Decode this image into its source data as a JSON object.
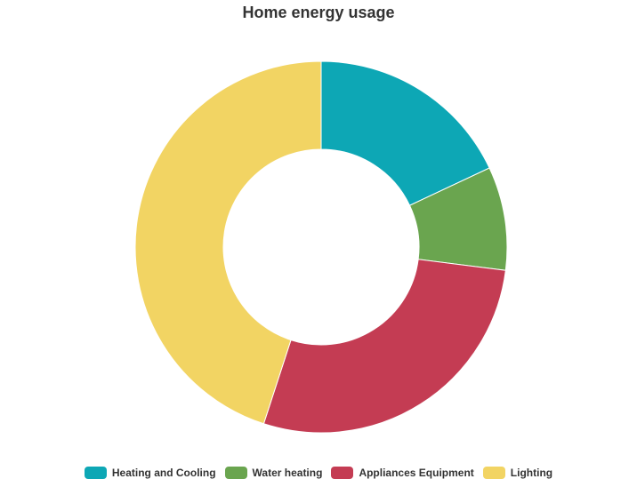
{
  "chart_data": {
    "type": "pie",
    "title": "Home energy usage",
    "categories": [
      "Heating and Cooling",
      "Water heating",
      "Appliances Equipment",
      "Lighting"
    ],
    "values": [
      18,
      9,
      28,
      45
    ],
    "colors": [
      "#0da7b5",
      "#6aa54f",
      "#c43c53",
      "#f2d463"
    ],
    "donut": true,
    "legend_position": "bottom"
  }
}
